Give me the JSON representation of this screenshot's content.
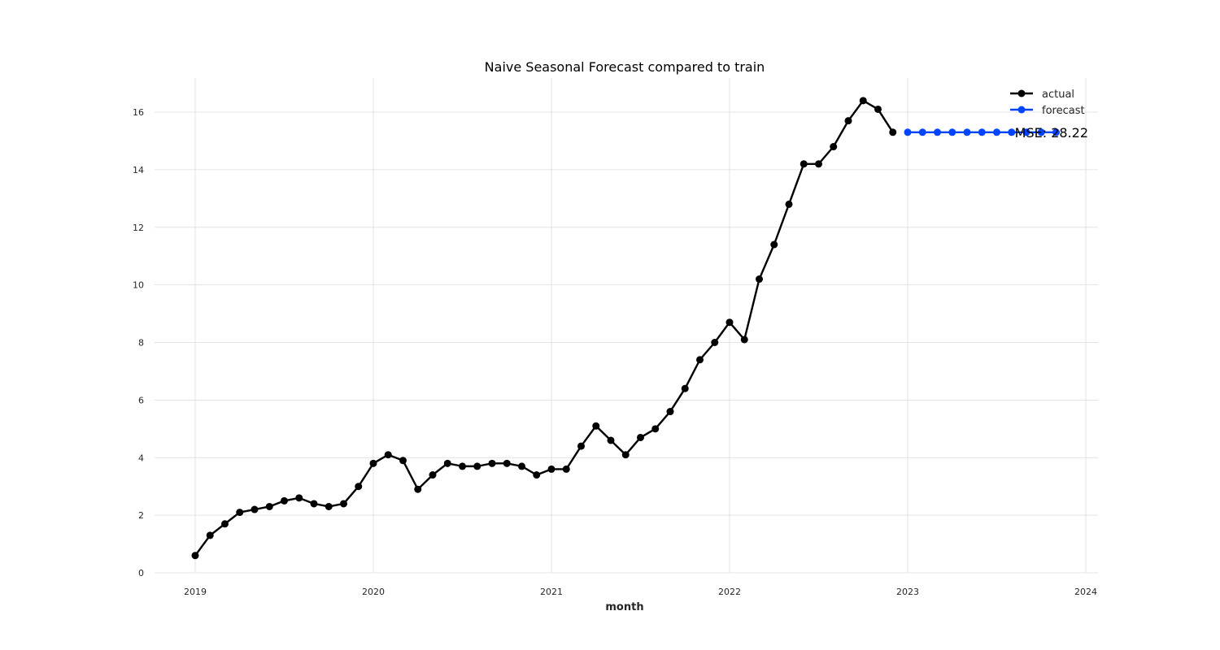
{
  "chart_data": {
    "type": "line",
    "title": "Naive Seasonal Forecast compared to train",
    "xlabel": "month",
    "ylabel": "",
    "x_ticks": [
      "2019",
      "2020",
      "2021",
      "2022",
      "2023",
      "2024"
    ],
    "y_ticks": [
      "0",
      "2",
      "4",
      "6",
      "8",
      "10",
      "12",
      "14",
      "16"
    ],
    "xlim": [
      "2018-10",
      "2024-01"
    ],
    "ylim": [
      -0.2,
      17.2
    ],
    "grid": true,
    "legend_position": "top-right",
    "annotation": "MSE: 28.22",
    "series": [
      {
        "name": "actual",
        "color": "#000000",
        "x": [
          "2019-01",
          "2019-02",
          "2019-03",
          "2019-04",
          "2019-05",
          "2019-06",
          "2019-07",
          "2019-08",
          "2019-09",
          "2019-10",
          "2019-11",
          "2019-12",
          "2020-01",
          "2020-02",
          "2020-03",
          "2020-04",
          "2020-05",
          "2020-06",
          "2020-07",
          "2020-08",
          "2020-09",
          "2020-10",
          "2020-11",
          "2020-12",
          "2021-01",
          "2021-02",
          "2021-03",
          "2021-04",
          "2021-05",
          "2021-06",
          "2021-07",
          "2021-08",
          "2021-09",
          "2021-10",
          "2021-11",
          "2021-12",
          "2022-01",
          "2022-02",
          "2022-03",
          "2022-04",
          "2022-05",
          "2022-06",
          "2022-07",
          "2022-08",
          "2022-09",
          "2022-10",
          "2022-11",
          "2022-12"
        ],
        "values": [
          0.6,
          1.3,
          1.7,
          2.1,
          2.2,
          2.3,
          2.5,
          2.6,
          2.4,
          2.3,
          2.4,
          3.0,
          3.8,
          4.1,
          3.9,
          2.9,
          3.4,
          3.8,
          3.7,
          3.7,
          3.8,
          3.8,
          3.7,
          3.4,
          3.6,
          3.6,
          4.4,
          5.1,
          4.6,
          4.1,
          4.7,
          5.0,
          5.6,
          6.4,
          7.4,
          8.0,
          8.7,
          8.1,
          10.2,
          11.4,
          12.8,
          14.2,
          14.2,
          14.8,
          15.7,
          16.4,
          16.1,
          15.3
        ]
      },
      {
        "name": "forecast",
        "color": "#0044ff",
        "x": [
          "2023-01",
          "2023-02",
          "2023-03",
          "2023-04",
          "2023-05",
          "2023-06",
          "2023-07",
          "2023-08",
          "2023-09",
          "2023-10",
          "2023-11"
        ],
        "values": [
          15.3,
          15.3,
          15.3,
          15.3,
          15.3,
          15.3,
          15.3,
          15.3,
          15.3,
          15.3,
          15.3
        ]
      }
    ]
  }
}
